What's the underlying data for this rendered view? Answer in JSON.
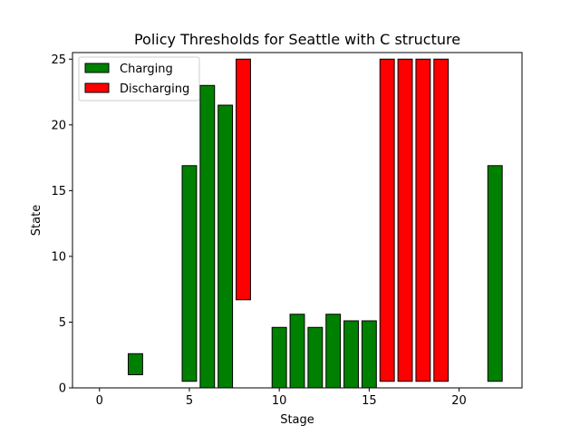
{
  "chart_data": {
    "type": "bar",
    "title": "Policy Thresholds for Seattle with C structure",
    "xlabel": "Stage",
    "ylabel": "State",
    "xlim": [
      -1.5,
      23.5
    ],
    "ylim": [
      0,
      25.5
    ],
    "xticks": [
      0,
      5,
      10,
      15,
      20
    ],
    "yticks": [
      0,
      5,
      10,
      15,
      20,
      25
    ],
    "grid": false,
    "legend_position": "upper-left",
    "colors": {
      "Charging": "#008000",
      "Discharging": "#ff0000",
      "edge": "#000000"
    },
    "series": [
      {
        "name": "Charging",
        "bars": [
          {
            "stage": 0,
            "bottom": 0,
            "top": 0
          },
          {
            "stage": 2,
            "bottom": 1.0,
            "top": 2.6
          },
          {
            "stage": 3,
            "bottom": 0,
            "top": 0
          },
          {
            "stage": 5,
            "bottom": 0.5,
            "top": 16.9
          },
          {
            "stage": 6,
            "bottom": 0,
            "top": 23.0
          },
          {
            "stage": 7,
            "bottom": 0,
            "top": 21.5
          },
          {
            "stage": 10,
            "bottom": 0,
            "top": 4.6
          },
          {
            "stage": 11,
            "bottom": 0,
            "top": 5.6
          },
          {
            "stage": 12,
            "bottom": 0,
            "top": 4.6
          },
          {
            "stage": 13,
            "bottom": 0,
            "top": 5.6
          },
          {
            "stage": 14,
            "bottom": 0,
            "top": 5.1
          },
          {
            "stage": 15,
            "bottom": 0,
            "top": 5.1
          },
          {
            "stage": 22,
            "bottom": 0.5,
            "top": 16.9
          }
        ]
      },
      {
        "name": "Discharging",
        "bars": [
          {
            "stage": 8,
            "bottom": 6.7,
            "top": 25.0
          },
          {
            "stage": 16,
            "bottom": 0.5,
            "top": 25.0
          },
          {
            "stage": 17,
            "bottom": 0.5,
            "top": 25.0
          },
          {
            "stage": 18,
            "bottom": 0.5,
            "top": 25.0
          },
          {
            "stage": 19,
            "bottom": 0.5,
            "top": 25.0
          }
        ]
      }
    ]
  }
}
